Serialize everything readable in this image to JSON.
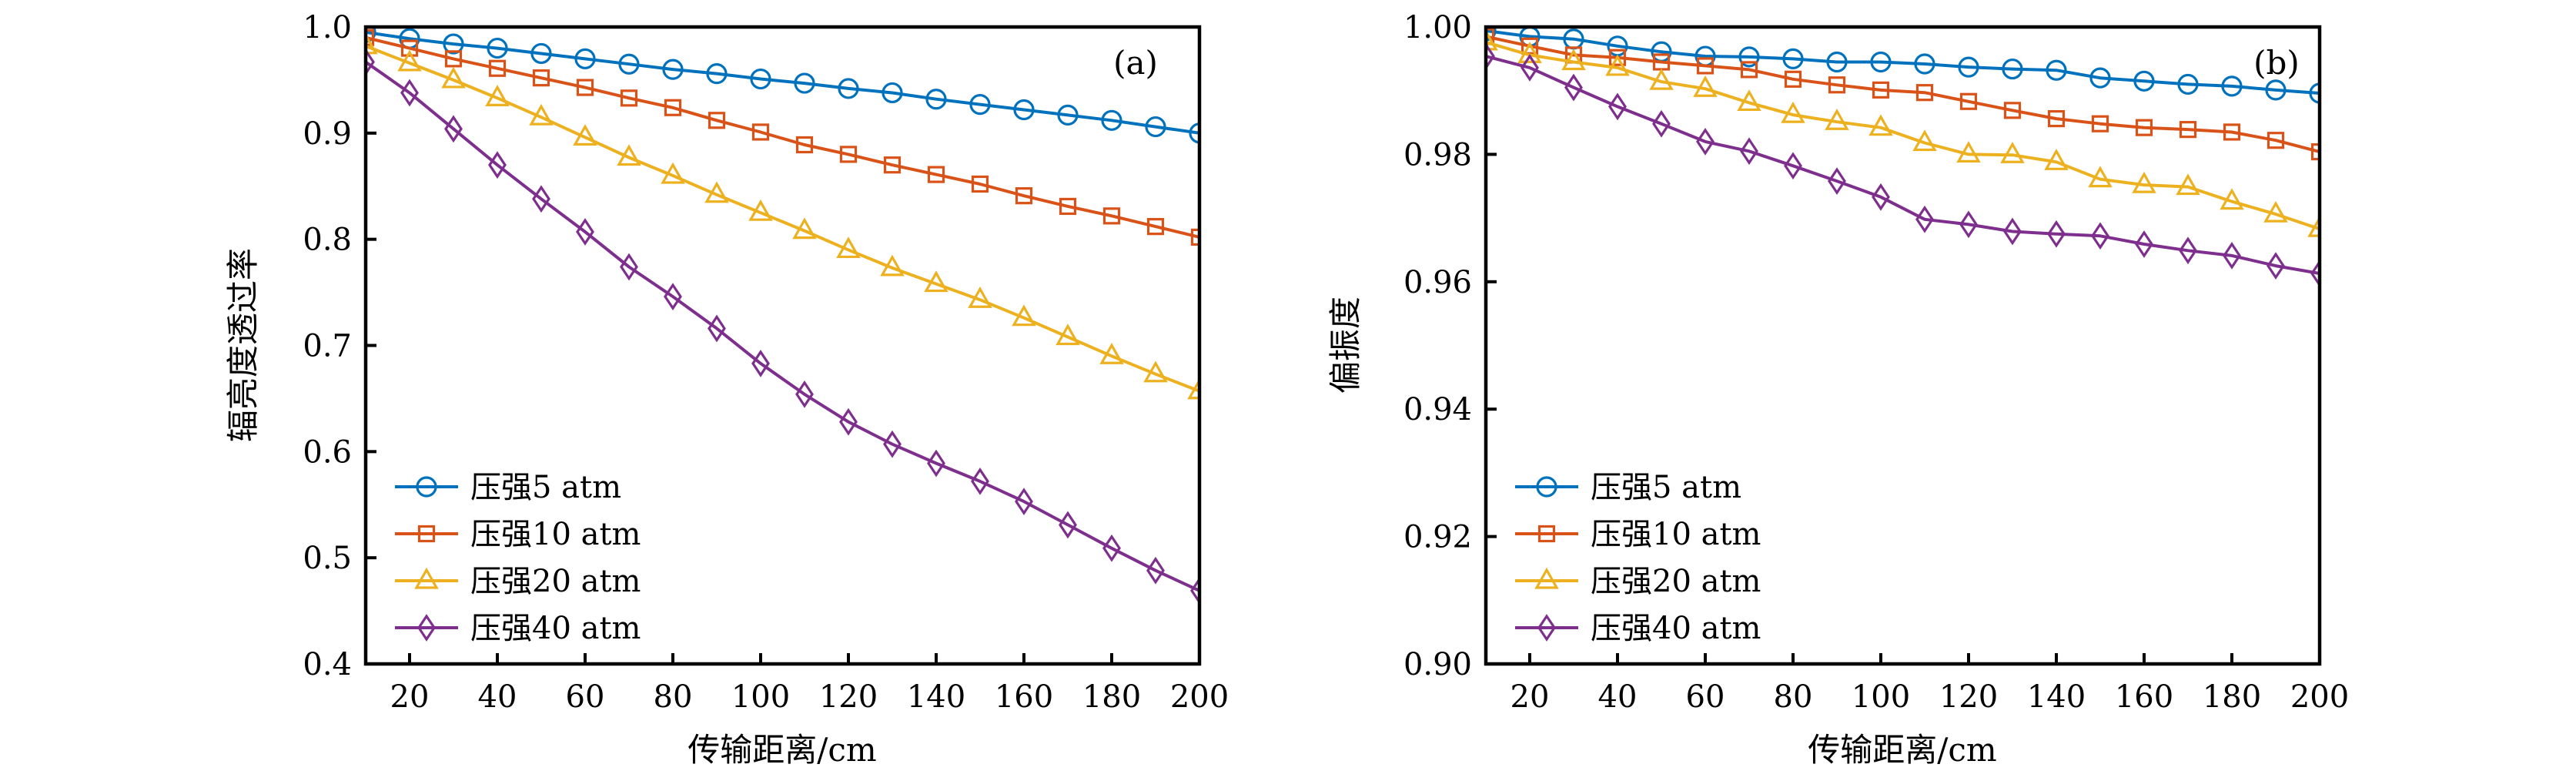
{
  "chart_data": [
    {
      "id": "a",
      "type": "line",
      "panel_label": "(a)",
      "title": "",
      "xlabel": "传输距离/cm",
      "ylabel": "辐亮度透过率",
      "xlim": [
        10,
        200
      ],
      "ylim": [
        0.4,
        1.0
      ],
      "xticks": [
        20,
        40,
        60,
        80,
        100,
        120,
        140,
        160,
        180,
        200
      ],
      "xtick_labels": [
        "20",
        "40",
        "60",
        "80",
        "100",
        "120",
        "140",
        "160",
        "180",
        "200"
      ],
      "yticks": [
        0.4,
        0.5,
        0.6,
        0.7,
        0.8,
        0.9,
        1.0
      ],
      "ytick_labels": [
        "0.4",
        "0.5",
        "0.6",
        "0.7",
        "0.8",
        "0.9",
        "1.0"
      ],
      "grid": false,
      "legend_position": "bottom-left",
      "x": [
        10,
        20,
        30,
        40,
        50,
        60,
        70,
        80,
        90,
        100,
        110,
        120,
        130,
        140,
        150,
        160,
        170,
        180,
        190,
        200
      ],
      "series": [
        {
          "name": "压强5 atm",
          "color": "#0072BD",
          "marker": "circle",
          "values": [
            0.995,
            0.989,
            0.984,
            0.98,
            0.975,
            0.97,
            0.965,
            0.96,
            0.956,
            0.951,
            0.947,
            0.942,
            0.938,
            0.932,
            0.927,
            0.922,
            0.917,
            0.912,
            0.906,
            0.9
          ]
        },
        {
          "name": "压强10 atm",
          "color": "#D95319",
          "marker": "square",
          "values": [
            0.99,
            0.98,
            0.97,
            0.961,
            0.952,
            0.943,
            0.933,
            0.924,
            0.912,
            0.901,
            0.889,
            0.88,
            0.87,
            0.861,
            0.852,
            0.841,
            0.831,
            0.822,
            0.812,
            0.802
          ]
        },
        {
          "name": "压强20 atm",
          "color": "#EDB120",
          "marker": "triangle",
          "values": [
            0.982,
            0.966,
            0.95,
            0.933,
            0.915,
            0.896,
            0.877,
            0.86,
            0.842,
            0.825,
            0.808,
            0.79,
            0.773,
            0.758,
            0.743,
            0.726,
            0.708,
            0.69,
            0.673,
            0.657
          ]
        },
        {
          "name": "压强40 atm",
          "color": "#7E2F8E",
          "marker": "diamond",
          "values": [
            0.967,
            0.938,
            0.904,
            0.87,
            0.838,
            0.807,
            0.774,
            0.746,
            0.716,
            0.683,
            0.654,
            0.628,
            0.607,
            0.589,
            0.572,
            0.553,
            0.531,
            0.509,
            0.488,
            0.469
          ]
        }
      ]
    },
    {
      "id": "b",
      "type": "line",
      "panel_label": "(b)",
      "title": "",
      "xlabel": "传输距离/cm",
      "ylabel": "偏振度",
      "xlim": [
        10,
        200
      ],
      "ylim": [
        0.9,
        1.0
      ],
      "xticks": [
        20,
        40,
        60,
        80,
        100,
        120,
        140,
        160,
        180,
        200
      ],
      "xtick_labels": [
        "20",
        "40",
        "60",
        "80",
        "100",
        "120",
        "140",
        "160",
        "180",
        "200"
      ],
      "yticks": [
        0.9,
        0.92,
        0.94,
        0.96,
        0.98,
        1.0
      ],
      "ytick_labels": [
        "0.90",
        "0.92",
        "0.94",
        "0.96",
        "0.98",
        "1.00"
      ],
      "grid": false,
      "legend_position": "bottom-left",
      "x": [
        10,
        20,
        30,
        40,
        50,
        60,
        70,
        80,
        90,
        100,
        110,
        120,
        130,
        140,
        150,
        160,
        170,
        180,
        190,
        200
      ],
      "series": [
        {
          "name": "压强5 atm",
          "color": "#0072BD",
          "marker": "circle",
          "values": [
            0.9994,
            0.9985,
            0.9981,
            0.997,
            0.9961,
            0.9954,
            0.9953,
            0.995,
            0.9945,
            0.9945,
            0.9942,
            0.9937,
            0.9934,
            0.9932,
            0.992,
            0.9915,
            0.991,
            0.9907,
            0.9901,
            0.9896
          ]
        },
        {
          "name": "压强10 atm",
          "color": "#D95319",
          "marker": "square",
          "values": [
            0.9985,
            0.997,
            0.9956,
            0.9952,
            0.9945,
            0.9939,
            0.9933,
            0.9918,
            0.9909,
            0.9901,
            0.9897,
            0.9883,
            0.9869,
            0.9856,
            0.9848,
            0.9842,
            0.9839,
            0.9835,
            0.9822,
            0.9804
          ]
        },
        {
          "name": "压强20 atm",
          "color": "#EDB120",
          "marker": "triangle",
          "values": [
            0.9976,
            0.9956,
            0.9945,
            0.9936,
            0.9914,
            0.9903,
            0.9881,
            0.9862,
            0.9851,
            0.9842,
            0.9818,
            0.98,
            0.9799,
            0.9788,
            0.9761,
            0.9752,
            0.9749,
            0.9726,
            0.9706,
            0.9683
          ]
        },
        {
          "name": "压强40 atm",
          "color": "#7E2F8E",
          "marker": "diamond",
          "values": [
            0.9954,
            0.9936,
            0.9905,
            0.9875,
            0.9848,
            0.982,
            0.9805,
            0.9782,
            0.9758,
            0.9733,
            0.9698,
            0.969,
            0.9679,
            0.9675,
            0.9672,
            0.9659,
            0.9649,
            0.9641,
            0.9625,
            0.9613
          ]
        }
      ]
    }
  ]
}
